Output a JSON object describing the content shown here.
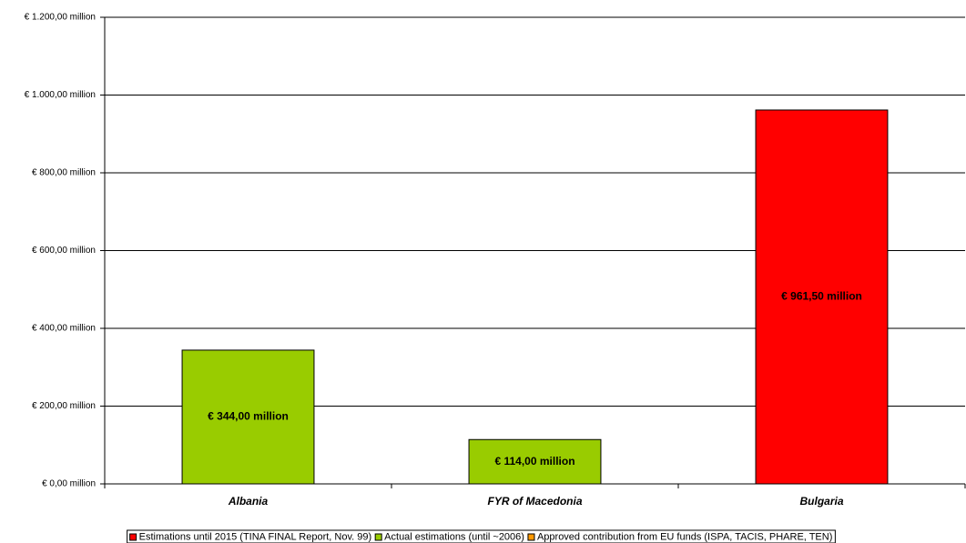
{
  "chart_data": {
    "type": "bar",
    "categories": [
      "Albania",
      "FYR of Macedonia",
      "Bulgaria"
    ],
    "series": [
      {
        "name": "Estimations until 2015 (TINA FINAL Report, Nov. 99)",
        "color": "#ff0000",
        "values": [
          null,
          null,
          961.5
        ],
        "value_labels": [
          null,
          null,
          "€ 961,50 million"
        ]
      },
      {
        "name": "Actual estimations (until ~2006)",
        "color": "#99cc00",
        "values": [
          344,
          114,
          null
        ],
        "value_labels": [
          "€ 344,00 million",
          "€ 114,00 million",
          null
        ]
      },
      {
        "name": "Approved contribution from EU funds (ISPA, TACIS, PHARE, TEN)",
        "color": "#ff9900",
        "values": [
          null,
          null,
          null
        ],
        "value_labels": [
          null,
          null,
          null
        ]
      }
    ],
    "ylim": [
      0,
      1200
    ],
    "yticks": [
      {
        "value": 0,
        "label": "€ 0,00 million"
      },
      {
        "value": 200,
        "label": "€ 200,00 million"
      },
      {
        "value": 400,
        "label": "€ 400,00 million"
      },
      {
        "value": 600,
        "label": "€ 600,00 million"
      },
      {
        "value": 800,
        "label": "€ 800,00 million"
      },
      {
        "value": 1000,
        "label": "€ 1.000,00 million"
      },
      {
        "value": 1200,
        "label": "€ 1.200,00 million"
      }
    ],
    "grid": true,
    "legend": "bottom"
  }
}
